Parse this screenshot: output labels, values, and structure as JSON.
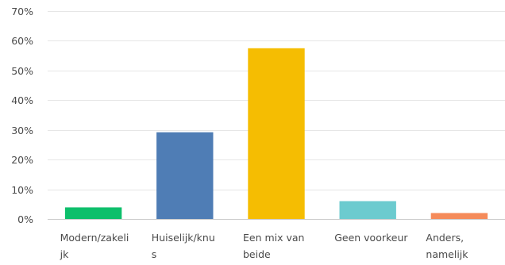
{
  "chart_data": {
    "type": "bar",
    "categories": [
      [
        "Modern/zakeli",
        "jk"
      ],
      [
        "Huiselijk/knu",
        "s"
      ],
      [
        "Een mix van",
        "beide"
      ],
      [
        "Geen voorkeur"
      ],
      [
        "Anders,",
        "namelijk"
      ]
    ],
    "values": [
      3.9,
      29.2,
      57.5,
      6.0,
      2.0
    ],
    "colors": [
      "#0dbf6b",
      "#4f7db5",
      "#f5bd02",
      "#6ccbcf",
      "#f58b5a"
    ],
    "ylim": [
      0,
      70
    ],
    "yticks": [
      "0%",
      "10%",
      "20%",
      "30%",
      "40%",
      "50%",
      "60%",
      "70%"
    ],
    "grid": true,
    "legend": "none"
  }
}
